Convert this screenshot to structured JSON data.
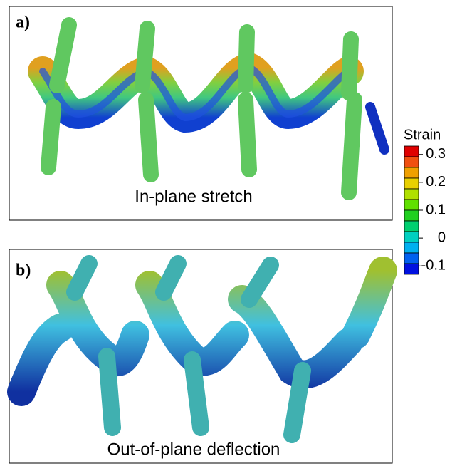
{
  "panels": [
    {
      "label": "a)",
      "caption": "In-plane stretch"
    },
    {
      "label": "b)",
      "caption": "Out-of-plane deflection"
    }
  ],
  "colorbar": {
    "title": "Strain",
    "ticks": [
      0.3,
      0.2,
      0.1,
      0,
      -0.1
    ],
    "lim": [
      -0.13,
      0.33
    ]
  }
}
